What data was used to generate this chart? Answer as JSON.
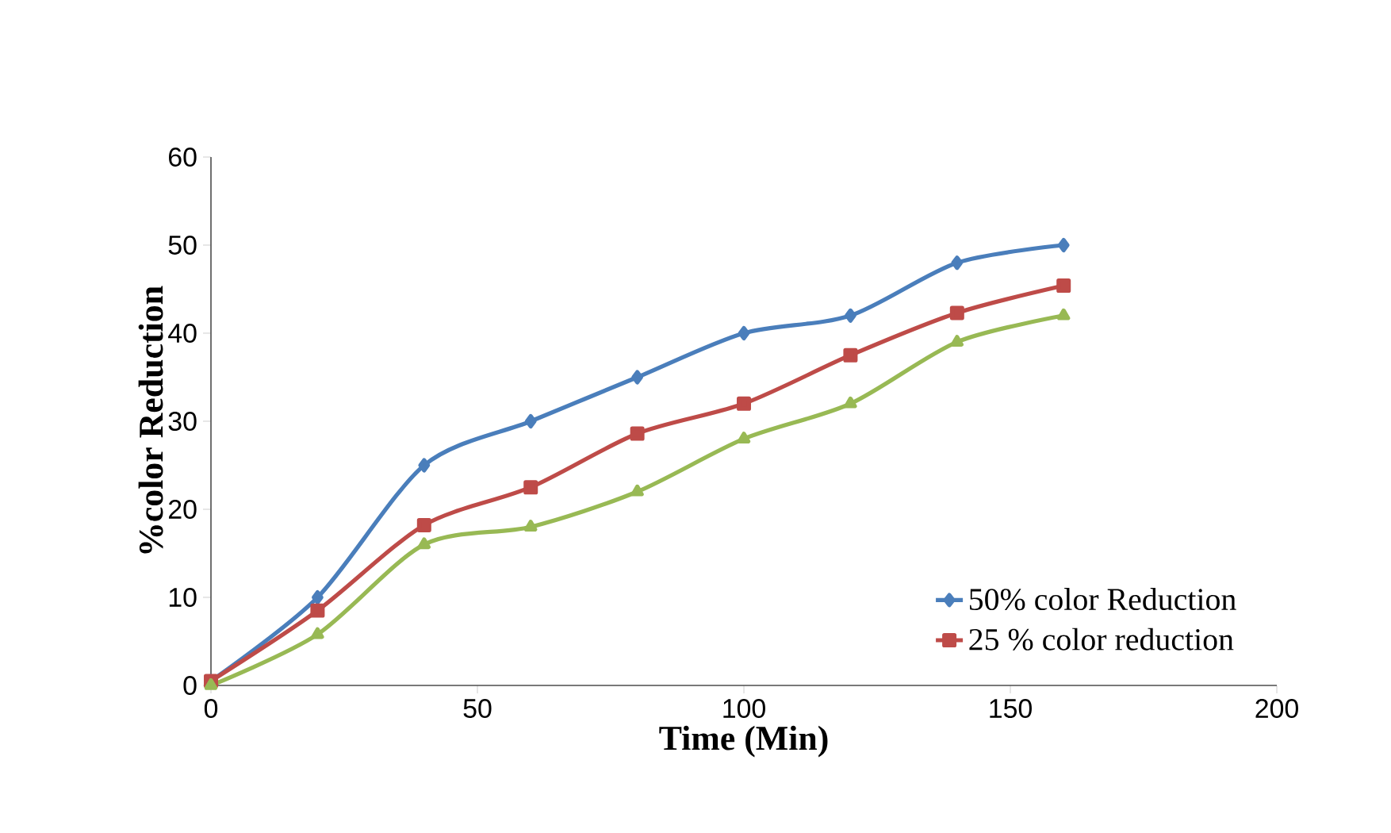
{
  "chart_data": {
    "type": "line",
    "xlabel": "Time (Min)",
    "ylabel": "%color  Reduction",
    "x": [
      0,
      20,
      40,
      60,
      80,
      100,
      120,
      140,
      160
    ],
    "series": [
      {
        "name": "50% color Reduction",
        "color": "#4a7ebb",
        "marker": "diamond",
        "values": [
          0.5,
          10,
          25,
          30,
          35,
          40,
          42,
          48,
          50
        ]
      },
      {
        "name": "25 % color reduction",
        "color": "#be4b48",
        "marker": "square",
        "values": [
          0.5,
          8.5,
          18.2,
          22.5,
          28.6,
          32,
          37.5,
          42.3,
          45.4
        ]
      },
      {
        "color": "#98b954",
        "marker": "triangle",
        "values": [
          0,
          5.8,
          16,
          18,
          22,
          28,
          32,
          39,
          42
        ]
      }
    ],
    "xlim": [
      0,
      200
    ],
    "ylim": [
      0,
      60
    ],
    "xticks": [
      0,
      50,
      100,
      150,
      200
    ],
    "yticks": [
      0,
      10,
      20,
      30,
      40,
      50,
      60
    ],
    "legend": "bottom right",
    "grid": false,
    "line_style": "solid"
  }
}
